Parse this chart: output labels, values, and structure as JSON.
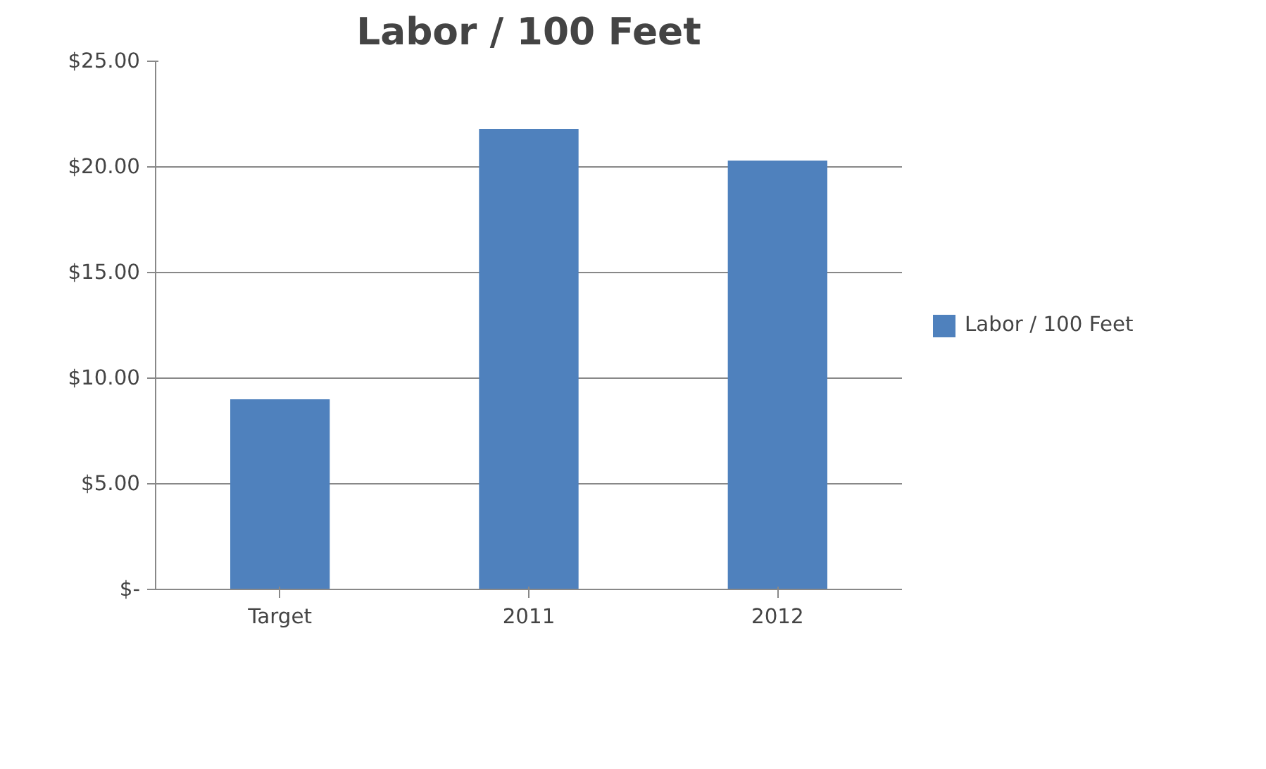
{
  "chart_data": {
    "type": "bar",
    "title": "Labor / 100 Feet",
    "categories": [
      "Target",
      "2011",
      "2012"
    ],
    "series": [
      {
        "name": "Labor / 100 Feet",
        "color": "#4f81bd",
        "values": [
          9.0,
          21.8,
          20.3
        ]
      }
    ],
    "ylim": [
      0,
      25
    ],
    "yticks": [
      {
        "value": 0,
        "label": "$-"
      },
      {
        "value": 5,
        "label": "$5.00"
      },
      {
        "value": 10,
        "label": "$10.00"
      },
      {
        "value": 15,
        "label": "$15.00"
      },
      {
        "value": 20,
        "label": "$20.00"
      },
      {
        "value": 25,
        "label": "$25.00"
      }
    ],
    "grid": "y",
    "legend": "right"
  }
}
